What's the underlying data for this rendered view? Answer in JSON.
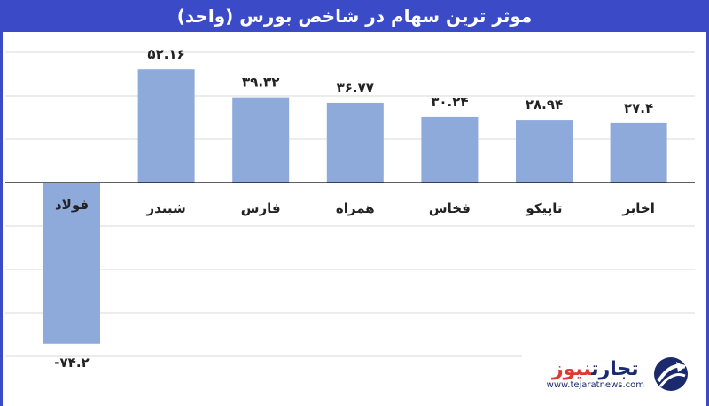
{
  "title": "موثر ترین سهام در شاخص بورس (واحد)",
  "colors": {
    "header": "#3b4bc8",
    "bar": "#8eaadb",
    "logo_dark": "#1a2a6c",
    "logo_accent": "#e03a2f"
  },
  "logo": {
    "name_part1": "تجارت",
    "name_part2": "نیوز",
    "url": "www.tejaratnews.com",
    "icon": "globe-swoosh-icon"
  },
  "chart_data": {
    "type": "bar",
    "categories": [
      "فولاد",
      "شبندر",
      "فارس",
      "همراه",
      "فخاس",
      "تاپیکو",
      "اخابر"
    ],
    "values": [
      -74.2,
      52.16,
      39.32,
      36.77,
      30.24,
      28.94,
      27.4
    ],
    "value_labels": [
      "-۷۴.۲",
      "۵۲.۱۶",
      "۳۹.۳۲",
      "۳۶.۷۷",
      "۳۰.۲۴",
      "۲۸.۹۴",
      "۲۷.۴"
    ],
    "title": "موثر ترین سهام در شاخص بورس (واحد)",
    "xlabel": "",
    "ylabel": "",
    "ylim": [
      -80,
      60
    ],
    "grid": true,
    "legend": "none"
  }
}
